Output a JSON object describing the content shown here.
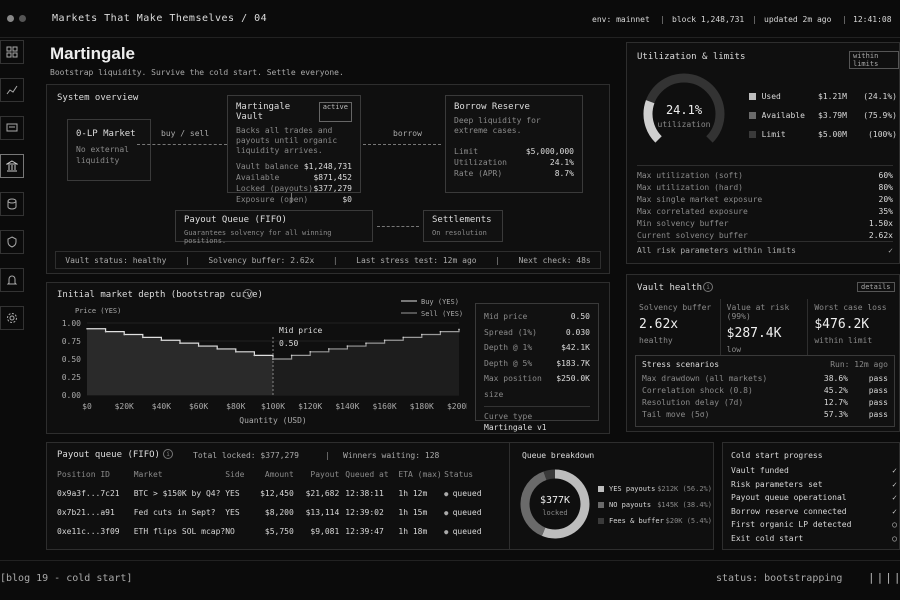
{
  "topbar": {
    "title": "Markets That Make Themselves / 04",
    "env": "env: mainnet",
    "block": "block 1,248,731",
    "updated": "updated 2m ago",
    "time": "12:41:08"
  },
  "sidebar": {
    "items": [
      "grid-icon",
      "trend-icon",
      "chat-icon",
      "bank-icon",
      "database-icon",
      "shield-icon",
      "bell-icon",
      "gear-icon"
    ]
  },
  "header": {
    "title": "Martingale",
    "subtitle": "Bootstrap liquidity. Survive the cold start. Settle everyone."
  },
  "overview": {
    "title": "System overview",
    "market": {
      "title": "0-LP Market",
      "desc": "No external liquidity"
    },
    "buysell": "buy / sell",
    "vault": {
      "title": "Martingale Vault",
      "badge": "active",
      "desc": "Backs all trades and payouts until organic liquidity arrives.",
      "rows": [
        {
          "k": "Vault balance",
          "v": "$1,248,731"
        },
        {
          "k": "Available",
          "v": "$871,452"
        },
        {
          "k": "Locked (payouts)",
          "v": "$377,279"
        },
        {
          "k": "Exposure (open)",
          "v": "$0"
        }
      ]
    },
    "borrow_label": "borrow",
    "reserve": {
      "title": "Borrow Reserve",
      "desc": "Deep liquidity for extreme cases.",
      "rows": [
        {
          "k": "Limit",
          "v": "$5,000,000"
        },
        {
          "k": "Utilization",
          "v": "24.1%"
        },
        {
          "k": "Rate (APR)",
          "v": "8.7%"
        }
      ]
    },
    "payout": {
      "title": "Payout Queue (FIFO)",
      "desc": "Guarantees solvency for all winning positions."
    },
    "settle": {
      "title": "Settlements",
      "desc": "On resolution"
    },
    "status": [
      "Vault status: healthy",
      "Solvency buffer: 2.62x",
      "Last stress test: 12m ago",
      "Next check: 48s"
    ]
  },
  "depth": {
    "title": "Initial market depth (bootstrap curve)",
    "legend_buy": "Buy (YES)",
    "legend_sell": "Sell (YES)",
    "ylabel": "Price (YES)",
    "xlabel": "Quantity (USD)",
    "mid_label": "Mid price",
    "mid_value": "0.50",
    "stats": [
      {
        "k": "Mid price",
        "v": "0.50"
      },
      {
        "k": "Spread (1%)",
        "v": "0.030"
      },
      {
        "k": "Depth @ 1%",
        "v": "$42.1K"
      },
      {
        "k": "Depth @ 5%",
        "v": "$183.7K"
      },
      {
        "k": "Max position size",
        "v": "$250.0K"
      }
    ],
    "curve_label": "Curve type",
    "curve_value": "Martingale v1"
  },
  "chart_data": {
    "type": "area",
    "yticks": [
      "1.00",
      "0.75",
      "0.50",
      "0.25",
      "0.00"
    ],
    "xticks": [
      "$0",
      "$20K",
      "$40K",
      "$60K",
      "$80K",
      "$100K",
      "$120K",
      "$140K",
      "$160K",
      "$180K",
      "$200K"
    ],
    "ylim": [
      0,
      1
    ],
    "xlim": [
      0,
      200000
    ],
    "series": [
      {
        "name": "Buy (YES)",
        "x": [
          0,
          10000,
          20000,
          30000,
          40000,
          50000,
          60000,
          70000,
          80000,
          90000,
          100000
        ],
        "values": [
          0.92,
          0.88,
          0.84,
          0.8,
          0.76,
          0.72,
          0.68,
          0.64,
          0.6,
          0.55,
          0.5
        ]
      },
      {
        "name": "Sell (YES)",
        "x": [
          100000,
          110000,
          120000,
          130000,
          140000,
          150000,
          160000,
          170000,
          180000,
          190000,
          200000
        ],
        "values": [
          0.5,
          0.55,
          0.6,
          0.64,
          0.68,
          0.72,
          0.76,
          0.8,
          0.84,
          0.88,
          0.91
        ]
      }
    ]
  },
  "payoutq": {
    "title": "Payout queue (FIFO)",
    "total": "Total locked: $377,279",
    "winners": "Winners waiting: 128",
    "cols": [
      "Position ID",
      "Market",
      "Side",
      "Amount",
      "Payout",
      "Queued at",
      "ETA (max)",
      "Status"
    ],
    "rows": [
      [
        "0x9a3f...7c21",
        "BTC > $150K by Q4?",
        "YES",
        "$12,450",
        "$21,682",
        "12:38:11",
        "1h 12m",
        "queued"
      ],
      [
        "0x7b21...a91",
        "Fed cuts in Sept?",
        "YES",
        "$8,200",
        "$13,114",
        "12:39:02",
        "1h 15m",
        "queued"
      ],
      [
        "0xe11c...3f09",
        "ETH flips SOL mcap?",
        "NO",
        "$5,750",
        "$9,081",
        "12:39:47",
        "1h 18m",
        "queued"
      ]
    ]
  },
  "breakdown": {
    "title": "Queue breakdown",
    "center": "$377K",
    "center_sub": "locked",
    "items": [
      {
        "label": "YES payouts",
        "value": "$212K (56.2%)",
        "pct": 56.2,
        "color": "#bdbdbd"
      },
      {
        "label": "NO payouts",
        "value": "$145K (38.4%)",
        "pct": 38.4,
        "color": "#6a6a6a"
      },
      {
        "label": "Fees & buffer",
        "value": "$20K (5.4%)",
        "pct": 5.4,
        "color": "#3a3a3a"
      }
    ]
  },
  "util": {
    "title": "Utilization & limits",
    "badge": "within limits",
    "gauge_value": "24.1%",
    "gauge_label": "utilization",
    "fraction": 0.241,
    "legend": [
      {
        "k": "Used",
        "v": "$1.21M",
        "p": "(24.1%)"
      },
      {
        "k": "Available",
        "v": "$3.79M",
        "p": "(75.9%)"
      },
      {
        "k": "Limit",
        "v": "$5.00M",
        "p": "(100%)"
      }
    ],
    "params": [
      {
        "k": "Max utilization (soft)",
        "v": "60%"
      },
      {
        "k": "Max utilization (hard)",
        "v": "80%"
      },
      {
        "k": "Max single market exposure",
        "v": "20%"
      },
      {
        "k": "Max correlated exposure",
        "v": "35%"
      },
      {
        "k": "Min solvency buffer",
        "v": "1.50x"
      },
      {
        "k": "Current solvency buffer",
        "v": "2.62x"
      }
    ],
    "footer": "All risk parameters within limits"
  },
  "health": {
    "title": "Vault health",
    "details": "details",
    "metrics": [
      {
        "k": "Solvency buffer",
        "v": "2.62x",
        "s": "healthy"
      },
      {
        "k": "Value at risk (99%)",
        "v": "$287.4K",
        "s": "low"
      },
      {
        "k": "Worst case loss",
        "v": "$476.2K",
        "s": "within limit"
      }
    ],
    "stress_title": "Stress scenarios",
    "stress_run": "Run: 12m ago",
    "stress": [
      {
        "k": "Max drawdown (all markets)",
        "v": "38.6%",
        "r": "pass"
      },
      {
        "k": "Correlation shock (0.8)",
        "v": "45.2%",
        "r": "pass"
      },
      {
        "k": "Resolution delay (7d)",
        "v": "12.7%",
        "r": "pass"
      },
      {
        "k": "Tail move (5σ)",
        "v": "57.3%",
        "r": "pass"
      }
    ]
  },
  "cold": {
    "title": "Cold start progress",
    "items": [
      {
        "k": "Vault funded",
        "d": true
      },
      {
        "k": "Risk parameters set",
        "d": true
      },
      {
        "k": "Payout queue operational",
        "d": true
      },
      {
        "k": "Borrow reserve connected",
        "d": true
      },
      {
        "k": "First organic LP detected",
        "d": false
      },
      {
        "k": "Exit cold start",
        "d": false
      }
    ]
  },
  "footer": {
    "left": "[blog 19 - cold start]",
    "right": "status: bootstrapping"
  }
}
